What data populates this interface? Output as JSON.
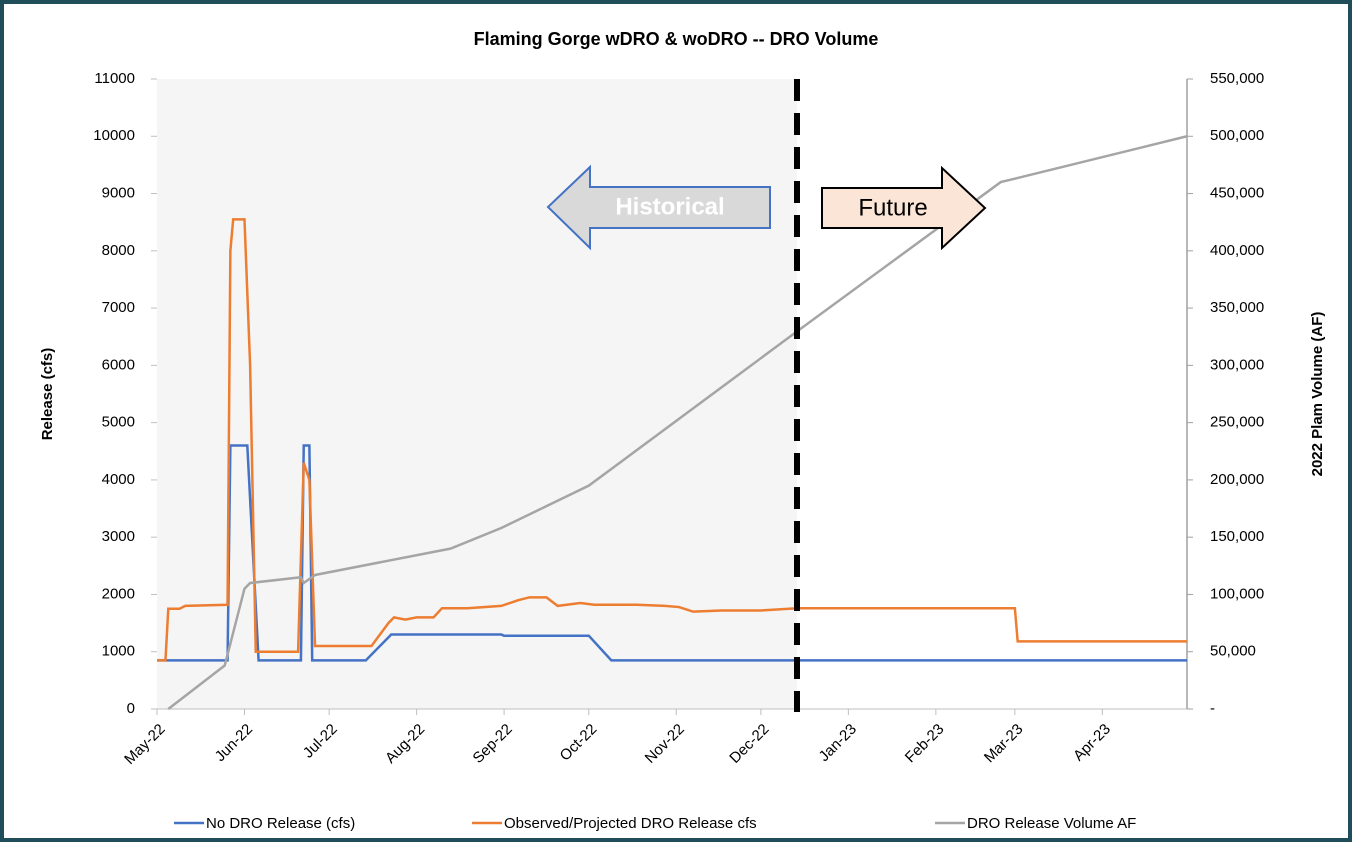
{
  "chart_data": {
    "type": "line",
    "title": "Flaming Gorge wDRO & woDRO -- DRO Volume",
    "y_label": "Release (cfs)",
    "y2_label": "2022 Plam Volume (AF)",
    "annotations": [
      "Historical",
      "Future"
    ],
    "xlim": [
      0,
      365
    ],
    "xticks": [
      {
        "value": 0,
        "label": "May-22"
      },
      {
        "value": 31,
        "label": "Jun-22"
      },
      {
        "value": 61,
        "label": "Jul-22"
      },
      {
        "value": 92,
        "label": "Aug-22"
      },
      {
        "value": 123,
        "label": "Sep-22"
      },
      {
        "value": 153,
        "label": "Oct-22"
      },
      {
        "value": 184,
        "label": "Nov-22"
      },
      {
        "value": 214,
        "label": "Dec-22"
      },
      {
        "value": 245,
        "label": "Jan-23"
      },
      {
        "value": 276,
        "label": "Feb-23"
      },
      {
        "value": 304,
        "label": "Mar-23"
      },
      {
        "value": 335,
        "label": "Apr-23"
      }
    ],
    "ylim": [
      0,
      11000
    ],
    "yticks": [
      0,
      1000,
      2000,
      3000,
      4000,
      5000,
      6000,
      7000,
      8000,
      9000,
      10000,
      11000
    ],
    "y2lim": [
      0,
      550000
    ],
    "y2ticks": [
      {
        "value": 0,
        "label": "-"
      },
      {
        "value": 50000,
        "label": "50,000"
      },
      {
        "value": 100000,
        "label": "100,000"
      },
      {
        "value": 150000,
        "label": "150,000"
      },
      {
        "value": 200000,
        "label": "200,000"
      },
      {
        "value": 250000,
        "label": "250,000"
      },
      {
        "value": 300000,
        "label": "300,000"
      },
      {
        "value": 350000,
        "label": "350,000"
      },
      {
        "value": 400000,
        "label": "400,000"
      },
      {
        "value": 450000,
        "label": "450,000"
      },
      {
        "value": 500000,
        "label": "500,000"
      },
      {
        "value": 550000,
        "label": "550,000"
      }
    ],
    "series": [
      {
        "name": "No DRO Release (cfs)",
        "color": "#4472c4",
        "x": [
          0,
          25,
          26,
          32,
          36,
          51,
          52,
          54,
          55,
          74,
          83,
          122,
          123,
          153,
          161,
          365
        ],
        "values": [
          850,
          850,
          4600,
          4600,
          850,
          850,
          4600,
          4600,
          850,
          850,
          1300,
          1300,
          1280,
          1280,
          850,
          850
        ]
      },
      {
        "name": "Observed/Projected DRO Release cfs",
        "color": "#ed7d31",
        "x": [
          0,
          3,
          4,
          8,
          10,
          25,
          26,
          27,
          31,
          33,
          35,
          50,
          52,
          54,
          56,
          76,
          82,
          84,
          88,
          92,
          98,
          101,
          110,
          122,
          128,
          132,
          138,
          142,
          150,
          155,
          170,
          180,
          185,
          190,
          200,
          214,
          227,
          304,
          305,
          365
        ],
        "values": [
          850,
          850,
          1750,
          1750,
          1800,
          1820,
          8000,
          8550,
          8550,
          6000,
          1000,
          1000,
          4300,
          4000,
          1100,
          1100,
          1500,
          1600,
          1560,
          1600,
          1600,
          1760,
          1760,
          1800,
          1900,
          1950,
          1950,
          1800,
          1850,
          1820,
          1820,
          1800,
          1780,
          1700,
          1720,
          1720,
          1760,
          1760,
          1180,
          1180
        ]
      },
      {
        "name": "DRO Release Volume AF",
        "color": "#a5a5a5",
        "axis": "y2",
        "x": [
          4,
          24,
          31,
          33,
          51,
          52,
          56,
          104,
          122,
          153,
          164,
          227,
          299,
          304,
          365
        ],
        "values": [
          0,
          38000,
          105000,
          110000,
          115000,
          110000,
          117000,
          140000,
          158000,
          195000,
          215000,
          330000,
          460000,
          463000,
          500000
        ]
      }
    ]
  }
}
